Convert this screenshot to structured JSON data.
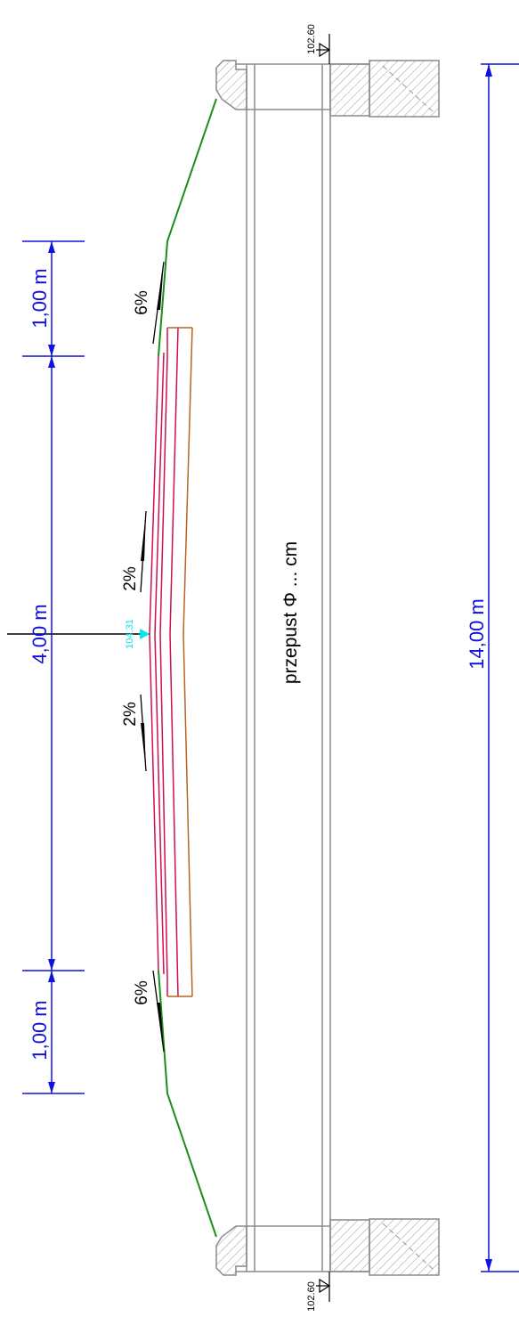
{
  "labels": {
    "dim_top": "1,00 m",
    "dim_middle": "4,00 m",
    "dim_bottom": "1,00 m",
    "dim_total": "14,00 m",
    "slope_top_outer": "6%",
    "slope_top_inner": "2%",
    "slope_bottom_inner": "2%",
    "slope_bottom_outer": "6%",
    "elevation_top": "102.60",
    "elevation_bottom": "102.60",
    "elevation_axis": "104.31",
    "culvert_label": "przepust Φ ... cm"
  },
  "colors": {
    "dimension": "#1010e0",
    "embankment": "#1a8f1a",
    "pavement": "#d0104a",
    "base_layer": "#b8641e",
    "structure": "#8a8a8a",
    "elevation_axis": "#00e5ee",
    "annotation": "#000000"
  },
  "icons": {
    "elevation_marker": "triangle-level-icon",
    "slope_arrow": "slope-arrow-icon"
  }
}
